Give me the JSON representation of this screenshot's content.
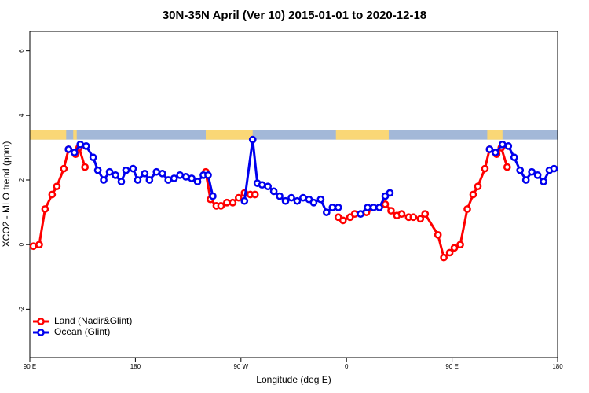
{
  "chart_data": {
    "type": "line",
    "title": "30N-35N April (Ver 10)   2015-01-01 to 2020-12-18",
    "xlabel": "Longitude (deg E)",
    "ylabel": "XCO2 - MLO trend (ppm)",
    "xlim": [
      90,
      540
    ],
    "ylim": [
      -3.5,
      6.6
    ],
    "xticks": [
      {
        "value": 90,
        "label": "90 E"
      },
      {
        "value": 180,
        "label": "180"
      },
      {
        "value": 270,
        "label": "90 W"
      },
      {
        "value": 360,
        "label": "0"
      },
      {
        "value": 450,
        "label": "90 E"
      },
      {
        "value": 540,
        "label": "180"
      }
    ],
    "yticks": [
      -2,
      0,
      2,
      4,
      6
    ],
    "legend": "bottom-left",
    "surface_band": {
      "ylim": [
        3.25,
        3.55
      ],
      "ocean_color": "#a3b8d8",
      "land_color": "#fad776",
      "land_ranges": [
        [
          90,
          121
        ],
        [
          127,
          130
        ],
        [
          240,
          280
        ],
        [
          351,
          396
        ],
        [
          480,
          493
        ]
      ]
    },
    "series": [
      {
        "name": "Land (Nadir&Glint)",
        "color": "#ff0000",
        "x": [
          93,
          98,
          103,
          109,
          113,
          119,
          123,
          129,
          132,
          137,
          null,
          240,
          244,
          249,
          253,
          258,
          263,
          268,
          273,
          278,
          282,
          null,
          353,
          357,
          363,
          367,
          377,
          393,
          398,
          403,
          407,
          413,
          417,
          423,
          427,
          438,
          443,
          448,
          452,
          457,
          463,
          468,
          472,
          478,
          482,
          488,
          492,
          497
        ],
        "values": [
          -0.05,
          0,
          1.1,
          1.55,
          1.8,
          2.35,
          2.95,
          2.8,
          3.0,
          2.4,
          null,
          2.25,
          1.4,
          1.2,
          1.2,
          1.3,
          1.3,
          1.45,
          1.6,
          1.55,
          1.55,
          null,
          0.85,
          0.75,
          0.85,
          0.95,
          1.0,
          1.25,
          1.05,
          0.9,
          0.95,
          0.85,
          0.85,
          0.8,
          0.95,
          0.3,
          -0.4,
          -0.25,
          -0.1,
          0,
          1.1,
          1.55,
          1.8,
          2.35,
          2.95,
          2.8,
          3.0,
          2.4
        ]
      },
      {
        "name": "Ocean (Glint)",
        "color": "#0000ee",
        "x": [
          123,
          128,
          133,
          138,
          144,
          148,
          153,
          158,
          163,
          168,
          172,
          178,
          182,
          188,
          192,
          198,
          203,
          208,
          213,
          218,
          223,
          228,
          233,
          238,
          242,
          246,
          null,
          273,
          280,
          284,
          288,
          293,
          298,
          303,
          308,
          313,
          318,
          323,
          328,
          332,
          338,
          343,
          348,
          353,
          null,
          372,
          378,
          383,
          388,
          393,
          397,
          null,
          482,
          487,
          493,
          498,
          503,
          508,
          513,
          518,
          523,
          528,
          533,
          537
        ],
        "values": [
          2.95,
          2.85,
          3.1,
          3.05,
          2.7,
          2.3,
          2.0,
          2.25,
          2.15,
          1.95,
          2.3,
          2.35,
          2.0,
          2.2,
          2.0,
          2.25,
          2.2,
          2.0,
          2.05,
          2.15,
          2.1,
          2.05,
          1.95,
          2.15,
          2.15,
          1.5,
          null,
          1.35,
          3.25,
          1.9,
          1.85,
          1.8,
          1.65,
          1.5,
          1.35,
          1.45,
          1.35,
          1.45,
          1.4,
          1.3,
          1.4,
          1.0,
          1.15,
          1.15,
          null,
          0.95,
          1.15,
          1.15,
          1.15,
          1.5,
          1.6,
          null,
          2.95,
          2.85,
          3.1,
          3.05,
          2.7,
          2.3,
          2.0,
          2.25,
          2.15,
          1.95,
          2.3,
          2.35
        ]
      }
    ]
  }
}
